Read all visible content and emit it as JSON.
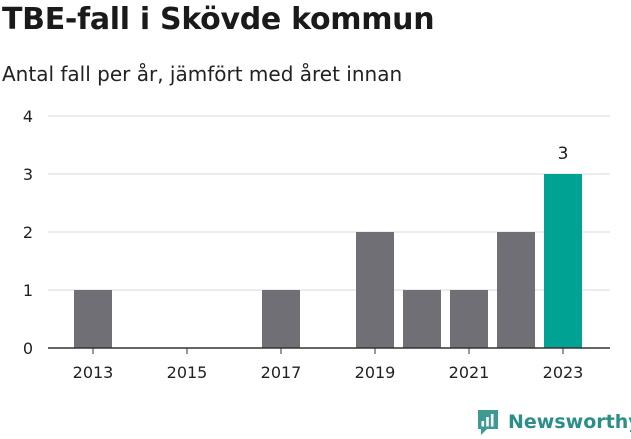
{
  "title": "TBE-fall i Skövde kommun",
  "subtitle": "Antal fall per år, jämfört med året innan",
  "brand": {
    "name": "Newsworthy",
    "icon": "newsworthy-logo-icon"
  },
  "colors": {
    "bar": "#706f75",
    "highlight": "#00a393",
    "grid": "#d9d9d9",
    "axis": "#333333",
    "brand": "#2c8f87"
  },
  "chart_data": {
    "type": "bar",
    "title": "TBE-fall i Skövde kommun",
    "subtitle": "Antal fall per år, jämfört med året innan",
    "xlabel": "",
    "ylabel": "",
    "categories": [
      "2013",
      "2014",
      "2015",
      "2016",
      "2017",
      "2018",
      "2019",
      "2020",
      "2021",
      "2022",
      "2023"
    ],
    "values": [
      1,
      0,
      0,
      0,
      1,
      0,
      2,
      1,
      1,
      2,
      3
    ],
    "highlight_index": 10,
    "data_labels": [
      {
        "index": 10,
        "text": "3"
      }
    ],
    "x_tick_labels": [
      "2013",
      "2015",
      "2017",
      "2019",
      "2021",
      "2023"
    ],
    "y_ticks": [
      0,
      1,
      2,
      3,
      4
    ],
    "ylim": [
      0,
      4
    ],
    "grid": true,
    "legend": "none"
  }
}
